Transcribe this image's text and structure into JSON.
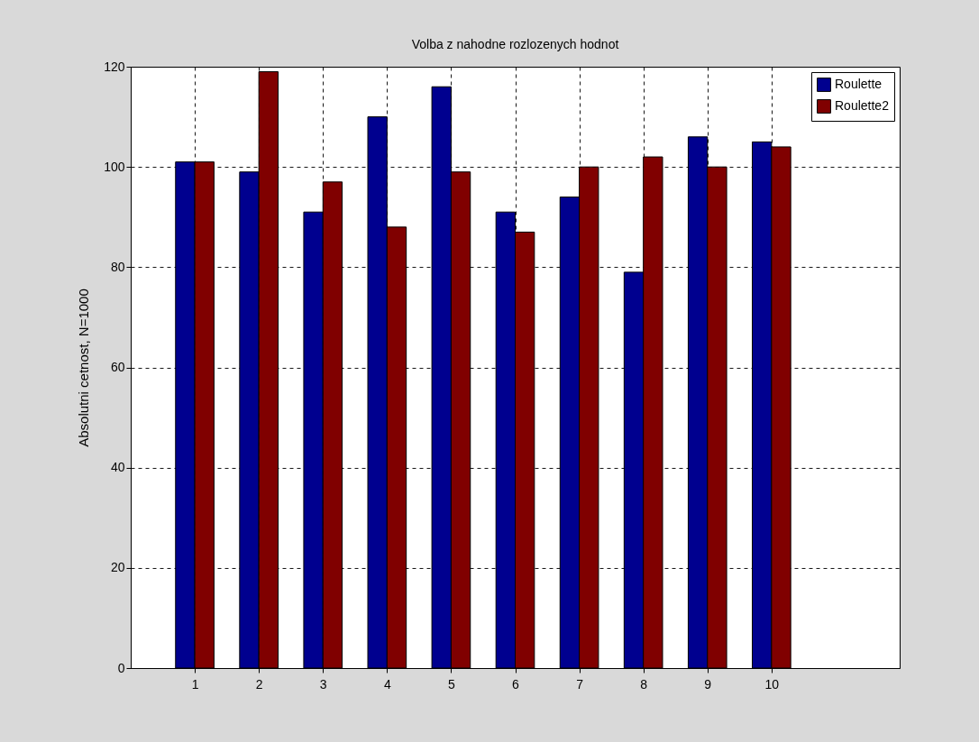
{
  "chart_data": {
    "type": "bar",
    "title": "Volba z nahodne rozlozenych hodnot",
    "ylabel": "Absolutni cetnost, N=1000",
    "x": [
      1,
      2,
      3,
      4,
      5,
      6,
      7,
      8,
      9,
      10
    ],
    "xlim": [
      0,
      12
    ],
    "xticks": [
      1,
      2,
      3,
      4,
      5,
      6,
      7,
      8,
      9,
      10
    ],
    "ylim": [
      0,
      120
    ],
    "yticks": [
      0,
      20,
      40,
      60,
      80,
      100,
      120
    ],
    "series": [
      {
        "name": "Roulette",
        "color": "#00008f",
        "values": [
          101,
          99,
          91,
          110,
          116,
          91,
          94,
          79,
          106,
          105
        ]
      },
      {
        "name": "Roulette2",
        "color": "#800000",
        "values": [
          101,
          119,
          97,
          88,
          99,
          87,
          100,
          102,
          100,
          104
        ]
      }
    ],
    "grid": true,
    "legend": "top right"
  }
}
